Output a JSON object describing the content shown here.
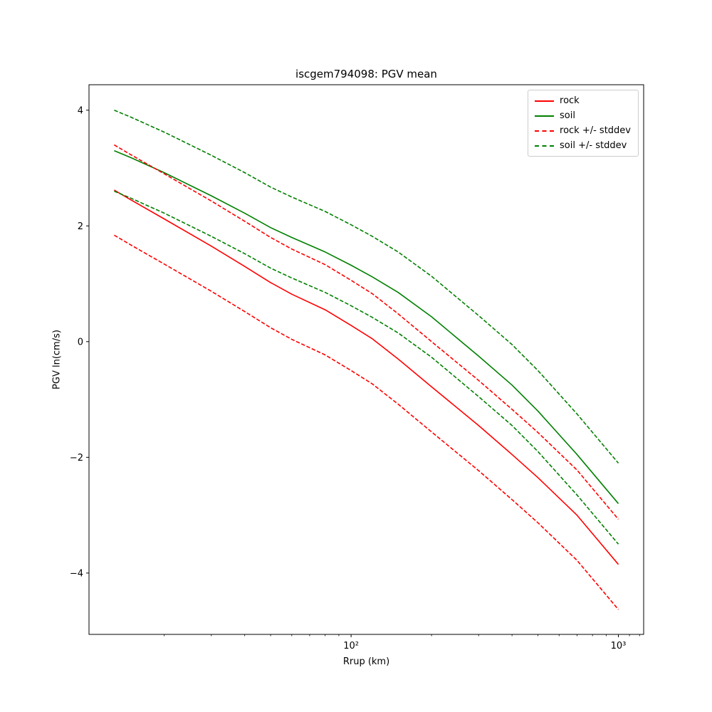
{
  "figure": {
    "background": "#ffffff"
  },
  "chart_data": {
    "type": "line",
    "title": "iscgem794098: PGV mean",
    "xlabel": "Rrup (km)",
    "ylabel": "PGV ln(cm/s)",
    "x_scale": "log",
    "grid": false,
    "legend_position": "upper right",
    "xlim": [
      10.46,
      1243
    ],
    "ylim": [
      -5.06,
      4.44
    ],
    "x_major_ticks": [
      {
        "value": 100,
        "label": "10²"
      },
      {
        "value": 1000,
        "label": "10³"
      }
    ],
    "x_minor_ticks": [
      20,
      30,
      40,
      50,
      60,
      70,
      80,
      90,
      200,
      300,
      400,
      500,
      600,
      700,
      800,
      900,
      1100,
      1200
    ],
    "y_ticks": [
      {
        "value": -4,
        "label": "−4"
      },
      {
        "value": -2,
        "label": "−2"
      },
      {
        "value": 0,
        "label": "0"
      },
      {
        "value": 2,
        "label": "2"
      },
      {
        "value": 4,
        "label": "4"
      }
    ],
    "x": [
      13,
      15,
      20,
      30,
      40,
      50,
      60,
      80,
      100,
      120,
      150,
      200,
      300,
      400,
      500,
      700,
      1000
    ],
    "series": [
      {
        "key": "rock",
        "name": "rock",
        "color": "#ff0000",
        "style": "solid",
        "values": [
          2.62,
          2.45,
          2.12,
          1.65,
          1.3,
          1.02,
          0.82,
          0.55,
          0.28,
          0.05,
          -0.3,
          -0.78,
          -1.45,
          -1.95,
          -2.35,
          -3.0,
          -3.85
        ]
      },
      {
        "key": "soil",
        "name": "soil",
        "color": "#008000",
        "style": "solid",
        "values": [
          3.3,
          3.18,
          2.92,
          2.52,
          2.22,
          1.97,
          1.8,
          1.55,
          1.32,
          1.12,
          0.85,
          0.43,
          -0.25,
          -0.75,
          -1.2,
          -1.95,
          -2.8
        ]
      },
      {
        "key": "rock-plus-stddev",
        "name": "rock + stddev",
        "color": "#ff0000",
        "style": "dashed",
        "values": [
          3.4,
          3.23,
          2.9,
          2.43,
          2.08,
          1.8,
          1.6,
          1.33,
          1.06,
          0.83,
          0.48,
          0.0,
          -0.67,
          -1.17,
          -1.57,
          -2.22,
          -3.07
        ]
      },
      {
        "key": "rock-minus-stddev",
        "name": "rock - stddev",
        "color": "#ff0000",
        "style": "dashed",
        "values": [
          1.84,
          1.67,
          1.34,
          0.87,
          0.52,
          0.24,
          0.04,
          -0.23,
          -0.5,
          -0.73,
          -1.08,
          -1.56,
          -2.23,
          -2.73,
          -3.13,
          -3.78,
          -4.63
        ]
      },
      {
        "key": "soil-plus-stddev",
        "name": "soil + stddev",
        "color": "#008000",
        "style": "dashed",
        "values": [
          4.0,
          3.88,
          3.62,
          3.22,
          2.92,
          2.67,
          2.5,
          2.25,
          2.02,
          1.82,
          1.55,
          1.13,
          0.45,
          -0.05,
          -0.5,
          -1.25,
          -2.1
        ]
      },
      {
        "key": "soil-minus-stddev",
        "name": "soil - stddev",
        "color": "#008000",
        "style": "dashed",
        "values": [
          2.6,
          2.48,
          2.22,
          1.82,
          1.52,
          1.27,
          1.1,
          0.85,
          0.62,
          0.42,
          0.15,
          -0.27,
          -0.95,
          -1.45,
          -1.9,
          -2.65,
          -3.5
        ]
      }
    ],
    "legend": [
      {
        "label": "rock",
        "color": "#ff0000",
        "style": "solid"
      },
      {
        "label": "soil",
        "color": "#008000",
        "style": "solid"
      },
      {
        "label": "rock +/- stddev",
        "color": "#ff0000",
        "style": "dashed"
      },
      {
        "label": "soil +/- stddev",
        "color": "#008000",
        "style": "dashed"
      }
    ]
  }
}
